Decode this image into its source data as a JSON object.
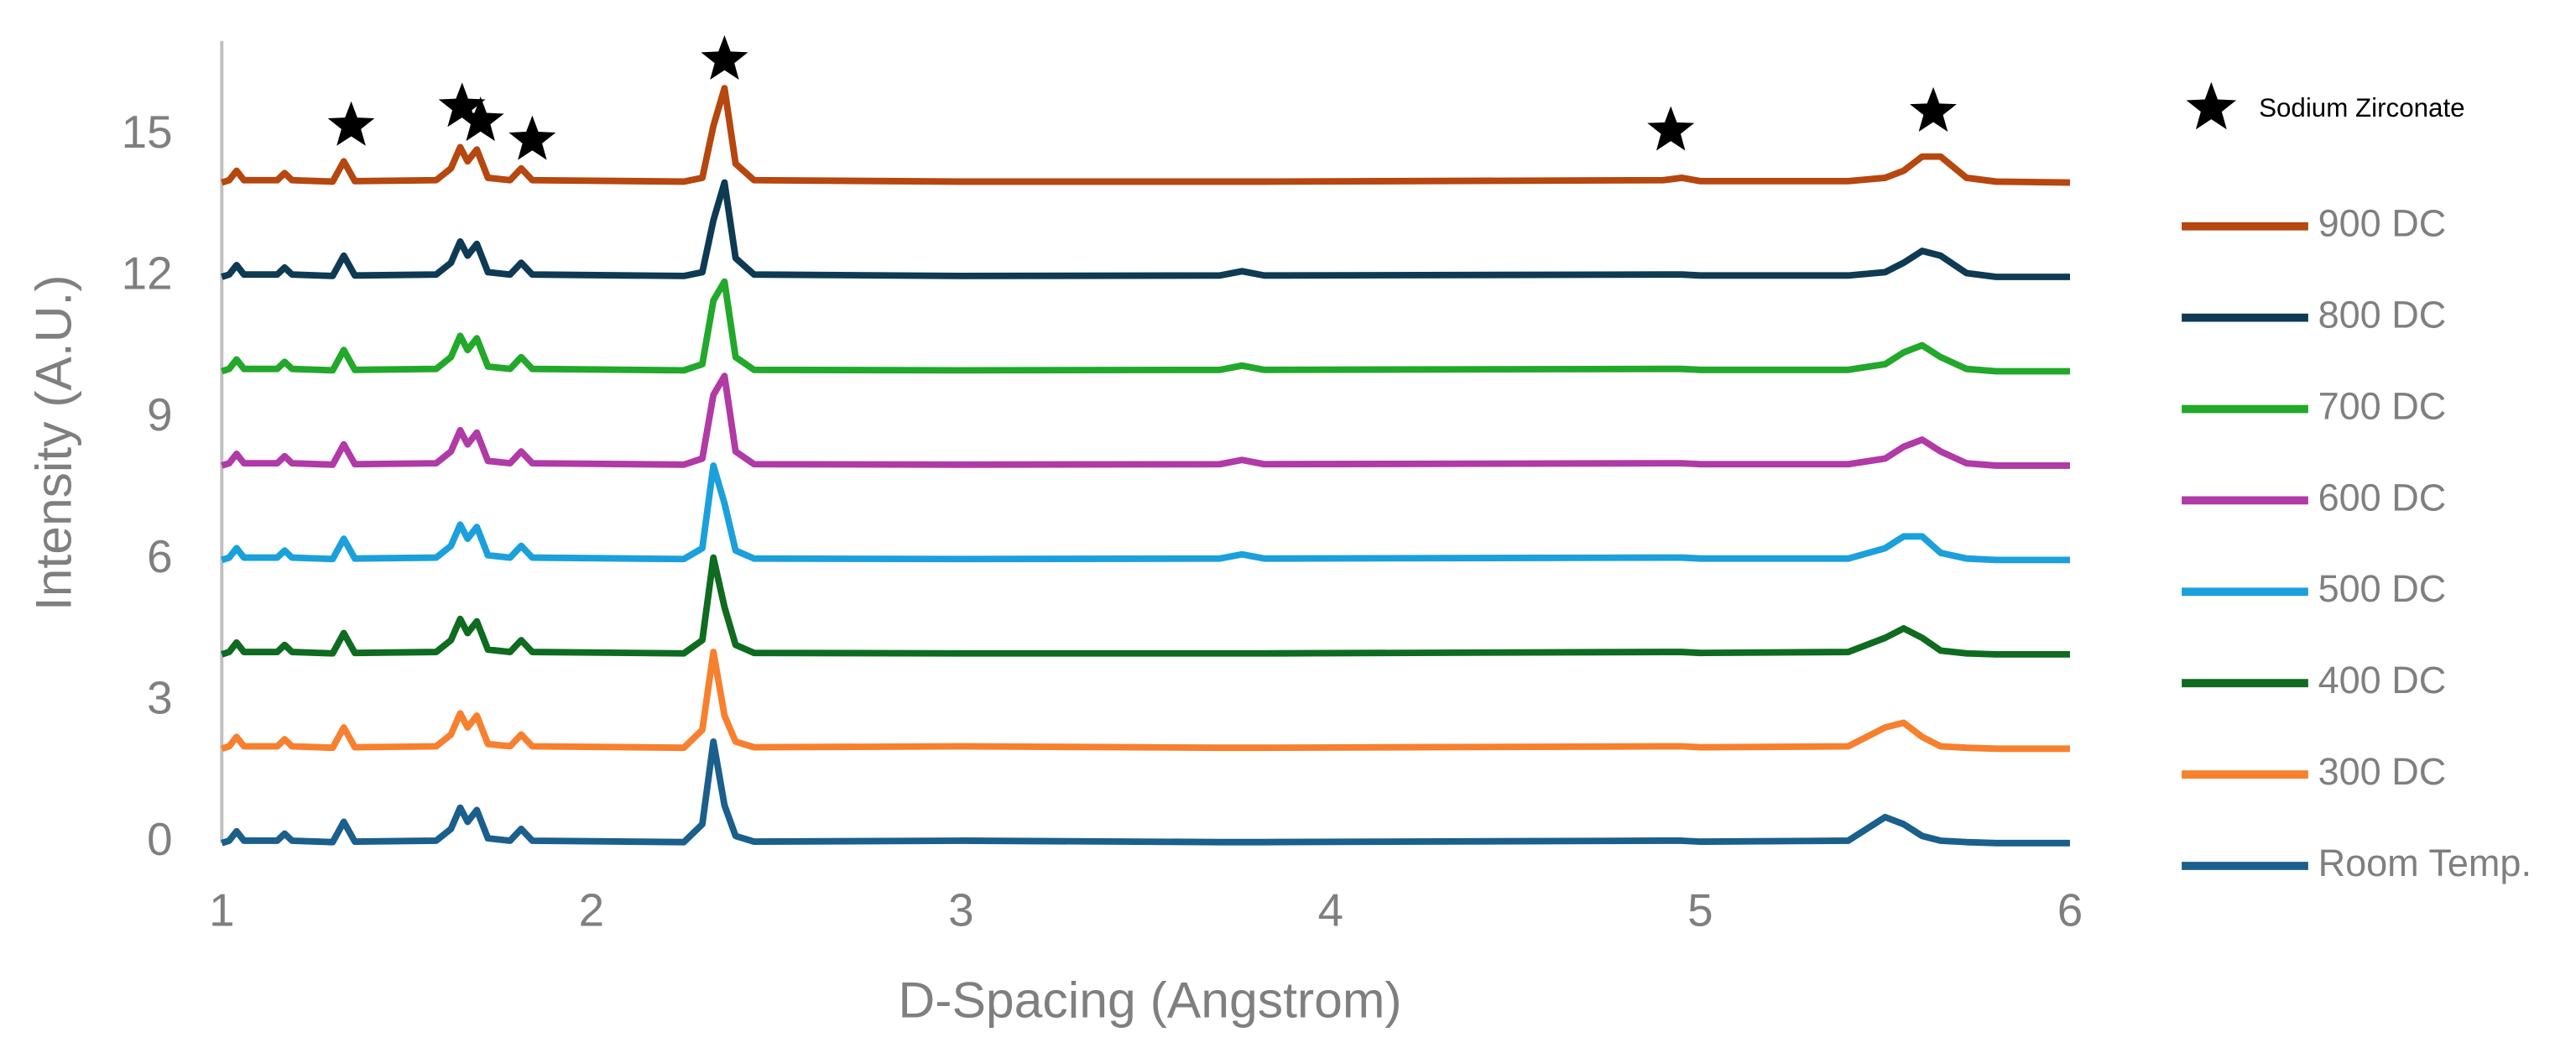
{
  "chart_data": {
    "type": "line",
    "xlabel": "D-Spacing (Angstrom)",
    "ylabel": "Intensity (A.U.)",
    "xlim": [
      1,
      6
    ],
    "xticks": [
      1,
      2,
      3,
      4,
      5,
      6
    ],
    "ylim": [
      0,
      17
    ],
    "yticks": [
      0,
      3,
      6,
      9,
      12,
      15
    ],
    "grid": false,
    "legend": "right",
    "x": [
      1,
      1.02,
      1.04,
      1.06,
      1.15,
      1.17,
      1.19,
      1.3,
      1.33,
      1.36,
      1.58,
      1.62,
      1.645,
      1.665,
      1.69,
      1.72,
      1.78,
      1.81,
      1.84,
      2.25,
      2.3,
      2.33,
      2.36,
      2.39,
      2.44,
      3.0,
      3.7,
      3.76,
      3.82,
      4.9,
      4.95,
      5.0,
      5.4,
      5.5,
      5.55,
      5.6,
      5.65,
      5.72,
      5.8,
      6
    ],
    "series": [
      {
        "name": "Room Temp.",
        "color": "#1b5f8c",
        "values": [
          0,
          0.05,
          0.25,
          0.05,
          0.05,
          0.2,
          0.05,
          0.02,
          0.45,
          0.03,
          0.05,
          0.3,
          0.75,
          0.45,
          0.7,
          0.1,
          0.05,
          0.3,
          0.05,
          0.02,
          0.4,
          2.15,
          0.8,
          0.15,
          0.03,
          0.05,
          0.02,
          0.02,
          0.02,
          0.05,
          0.05,
          0.03,
          0.05,
          0.55,
          0.4,
          0.15,
          0.05,
          0.02,
          0,
          0
        ]
      },
      {
        "name": "300 DC",
        "color": "#f7802f",
        "values": [
          2,
          2.05,
          2.25,
          2.05,
          2.05,
          2.2,
          2.05,
          2.02,
          2.45,
          2.03,
          2.05,
          2.3,
          2.75,
          2.45,
          2.7,
          2.1,
          2.05,
          2.3,
          2.05,
          2.02,
          2.4,
          4.05,
          2.7,
          2.15,
          2.03,
          2.05,
          2.02,
          2.02,
          2.02,
          2.05,
          2.05,
          2.03,
          2.05,
          2.45,
          2.55,
          2.25,
          2.05,
          2.02,
          2,
          2
        ]
      },
      {
        "name": "400 DC",
        "color": "#0f6b1f",
        "values": [
          4,
          4.05,
          4.25,
          4.05,
          4.05,
          4.2,
          4.05,
          4.02,
          4.45,
          4.03,
          4.05,
          4.3,
          4.75,
          4.45,
          4.7,
          4.1,
          4.05,
          4.3,
          4.05,
          4.02,
          4.3,
          6.05,
          5,
          4.2,
          4.03,
          4.02,
          4.02,
          4.02,
          4.02,
          4.05,
          4.05,
          4.03,
          4.05,
          4.35,
          4.55,
          4.35,
          4.08,
          4.02,
          4,
          4
        ]
      },
      {
        "name": "500 DC",
        "color": "#1ba0dc",
        "values": [
          6,
          6.05,
          6.25,
          6.05,
          6.05,
          6.2,
          6.05,
          6.02,
          6.45,
          6.03,
          6.05,
          6.3,
          6.75,
          6.45,
          6.7,
          6.1,
          6.05,
          6.3,
          6.05,
          6.02,
          6.25,
          8,
          7.2,
          6.2,
          6.03,
          6.02,
          6.03,
          6.12,
          6.03,
          6.05,
          6.05,
          6.03,
          6.03,
          6.25,
          6.5,
          6.5,
          6.15,
          6.03,
          6,
          6
        ]
      },
      {
        "name": "600 DC",
        "color": "#b03aa6",
        "values": [
          8,
          8.05,
          8.25,
          8.05,
          8.05,
          8.2,
          8.05,
          8.02,
          8.45,
          8.03,
          8.05,
          8.3,
          8.75,
          8.45,
          8.7,
          8.1,
          8.05,
          8.3,
          8.05,
          8.02,
          8.15,
          9.5,
          9.9,
          8.3,
          8.03,
          8.02,
          8.03,
          8.12,
          8.03,
          8.05,
          8.05,
          8.03,
          8.03,
          8.15,
          8.4,
          8.55,
          8.3,
          8.05,
          8,
          8
        ]
      },
      {
        "name": "700 DC",
        "color": "#22a82b",
        "values": [
          10,
          10.05,
          10.25,
          10.05,
          10.05,
          10.2,
          10.05,
          10.02,
          10.45,
          10.03,
          10.05,
          10.3,
          10.75,
          10.45,
          10.7,
          10.1,
          10.05,
          10.3,
          10.05,
          10.02,
          10.15,
          11.5,
          11.9,
          10.3,
          10.03,
          10.02,
          10.03,
          10.12,
          10.03,
          10.05,
          10.05,
          10.03,
          10.03,
          10.15,
          10.4,
          10.55,
          10.3,
          10.05,
          10,
          10
        ]
      },
      {
        "name": "800 DC",
        "color": "#0e3a53",
        "values": [
          12,
          12.05,
          12.25,
          12.05,
          12.05,
          12.2,
          12.05,
          12.02,
          12.45,
          12.03,
          12.05,
          12.3,
          12.75,
          12.45,
          12.7,
          12.1,
          12.05,
          12.3,
          12.05,
          12.02,
          12.1,
          13.2,
          14,
          12.4,
          12.05,
          12.02,
          12.03,
          12.12,
          12.03,
          12.05,
          12.05,
          12.03,
          12.03,
          12.1,
          12.3,
          12.55,
          12.45,
          12.08,
          12,
          12
        ]
      },
      {
        "name": "900 DC",
        "color": "#b5470f",
        "values": [
          14,
          14.05,
          14.25,
          14.05,
          14.05,
          14.2,
          14.05,
          14.02,
          14.45,
          14.03,
          14.05,
          14.3,
          14.75,
          14.45,
          14.7,
          14.1,
          14.05,
          14.3,
          14.05,
          14.02,
          14.1,
          15.2,
          16,
          14.4,
          14.05,
          14.02,
          14.02,
          14.02,
          14.02,
          14.05,
          14.1,
          14.03,
          14.03,
          14.1,
          14.25,
          14.55,
          14.55,
          14.1,
          14.02,
          14
        ]
      }
    ],
    "annotations": {
      "name": "Sodium Zirconate",
      "color": "#000000",
      "x": [
        1.35,
        1.65,
        1.7,
        1.84,
        2.36,
        4.92,
        5.63
      ],
      "y": [
        15.2,
        15.6,
        15.3,
        14.9,
        16.6,
        15.1,
        15.5
      ]
    }
  }
}
